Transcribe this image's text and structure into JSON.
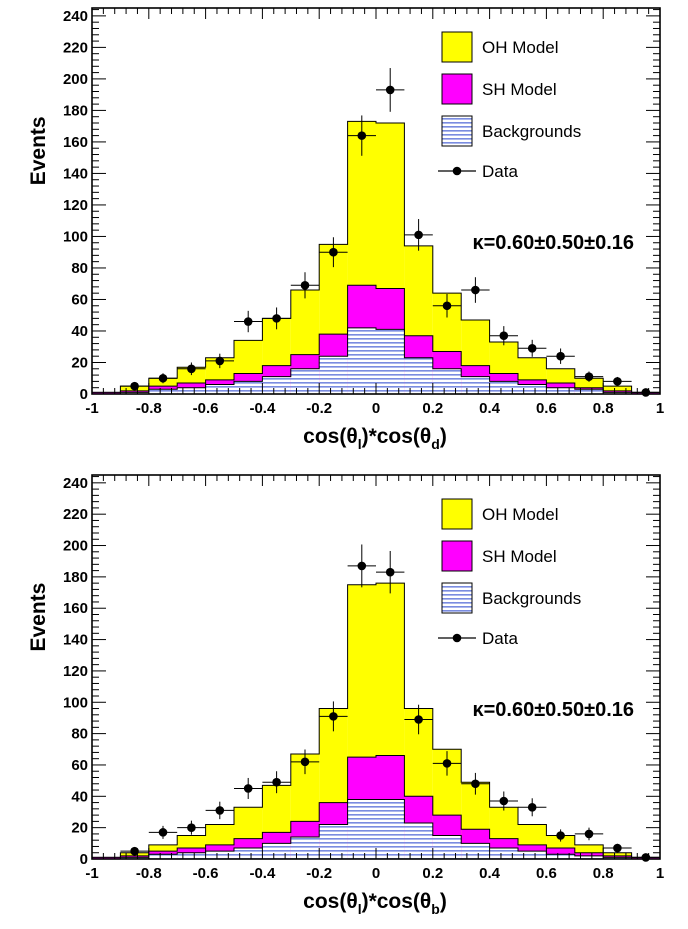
{
  "chart_data": [
    {
      "type": "histogram",
      "ylabel": "Events",
      "xlabel_parts": [
        "cos(θ",
        "l",
        ")*cos(θ",
        "d",
        ")"
      ],
      "xlim": [
        -1,
        1
      ],
      "ylim": [
        0,
        245
      ],
      "xticks": [
        "-1",
        "-0.8",
        "-0.6",
        "-0.4",
        "-0.2",
        "0",
        "0.2",
        "0.4",
        "0.6",
        "0.8",
        "1"
      ],
      "yticks": [
        "0",
        "20",
        "40",
        "60",
        "80",
        "100",
        "120",
        "140",
        "160",
        "180",
        "200",
        "220",
        "240"
      ],
      "bin_edges": [
        -1,
        -0.9,
        -0.8,
        -0.7,
        -0.6,
        -0.5,
        -0.4,
        -0.3,
        -0.2,
        -0.1,
        0,
        0.1,
        0.2,
        0.3,
        0.4,
        0.5,
        0.6,
        0.7,
        0.8,
        0.9,
        1
      ],
      "series": [
        {
          "name": "OH Model",
          "color": "#ffff00",
          "values": [
            1,
            5,
            10,
            17,
            23,
            34,
            48,
            66,
            95,
            173,
            172,
            94,
            64,
            47,
            33,
            23,
            16,
            10,
            5,
            1
          ]
        },
        {
          "name": "SH Model",
          "color": "#ff00ff",
          "values": [
            1,
            2,
            5,
            7,
            9,
            13,
            18,
            25,
            38,
            69,
            67,
            37,
            27,
            18,
            13,
            9,
            7,
            4,
            2,
            1
          ]
        },
        {
          "name": "Backgrounds",
          "color": "#5a6fd8",
          "values": [
            0,
            1,
            3,
            4,
            6,
            8,
            11,
            16,
            24,
            42,
            41,
            23,
            16,
            11,
            8,
            6,
            4,
            3,
            1,
            0
          ]
        }
      ],
      "data_points": {
        "name": "Data",
        "x": [
          -0.85,
          -0.75,
          -0.65,
          -0.55,
          -0.45,
          -0.35,
          -0.25,
          -0.15,
          -0.05,
          0.05,
          0.15,
          0.25,
          0.35,
          0.45,
          0.55,
          0.65,
          0.75,
          0.85,
          0.95
        ],
        "y": [
          5,
          10,
          16,
          21,
          46,
          48,
          69,
          90,
          164,
          193,
          101,
          56,
          66,
          37,
          29,
          24,
          11,
          8,
          1
        ],
        "xerr": 0.05
      },
      "annotation": "κ=0.60±0.50±0.16",
      "legend": "top-right"
    },
    {
      "type": "histogram",
      "ylabel": "Events",
      "xlabel_parts": [
        "cos(θ",
        "l",
        ")*cos(θ",
        "b",
        ")"
      ],
      "xlim": [
        -1,
        1
      ],
      "ylim": [
        0,
        245
      ],
      "xticks": [
        "-1",
        "-0.8",
        "-0.6",
        "-0.4",
        "-0.2",
        "0",
        "0.2",
        "0.4",
        "0.6",
        "0.8",
        "1"
      ],
      "yticks": [
        "0",
        "20",
        "40",
        "60",
        "80",
        "100",
        "120",
        "140",
        "160",
        "180",
        "200",
        "220",
        "240"
      ],
      "bin_edges": [
        -1,
        -0.9,
        -0.8,
        -0.7,
        -0.6,
        -0.5,
        -0.4,
        -0.3,
        -0.2,
        -0.1,
        0,
        0.1,
        0.2,
        0.3,
        0.4,
        0.5,
        0.6,
        0.7,
        0.8,
        0.9,
        1
      ],
      "series": [
        {
          "name": "OH Model",
          "color": "#ffff00",
          "values": [
            1,
            4,
            9,
            15,
            22,
            33,
            47,
            67,
            96,
            175,
            176,
            96,
            70,
            49,
            33,
            22,
            15,
            9,
            4,
            1
          ]
        },
        {
          "name": "SH Model",
          "color": "#ff00ff",
          "values": [
            1,
            2,
            5,
            7,
            9,
            13,
            17,
            24,
            36,
            65,
            66,
            40,
            28,
            19,
            13,
            9,
            7,
            4,
            2,
            1
          ]
        },
        {
          "name": "Backgrounds",
          "color": "#5a6fd8",
          "values": [
            0,
            1,
            3,
            4,
            5,
            7,
            10,
            14,
            22,
            38,
            38,
            23,
            15,
            10,
            7,
            5,
            3,
            2,
            1,
            0
          ]
        }
      ],
      "data_points": {
        "name": "Data",
        "x": [
          -0.85,
          -0.75,
          -0.65,
          -0.55,
          -0.45,
          -0.35,
          -0.25,
          -0.15,
          -0.05,
          0.05,
          0.15,
          0.25,
          0.35,
          0.45,
          0.55,
          0.65,
          0.75,
          0.85,
          0.95
        ],
        "y": [
          5,
          17,
          20,
          31,
          45,
          49,
          62,
          91,
          187,
          183,
          89,
          61,
          48,
          37,
          33,
          15,
          16,
          7,
          1
        ],
        "xerr": 0.05
      },
      "annotation": "κ=0.60±0.50±0.16",
      "legend": "top-right"
    }
  ]
}
